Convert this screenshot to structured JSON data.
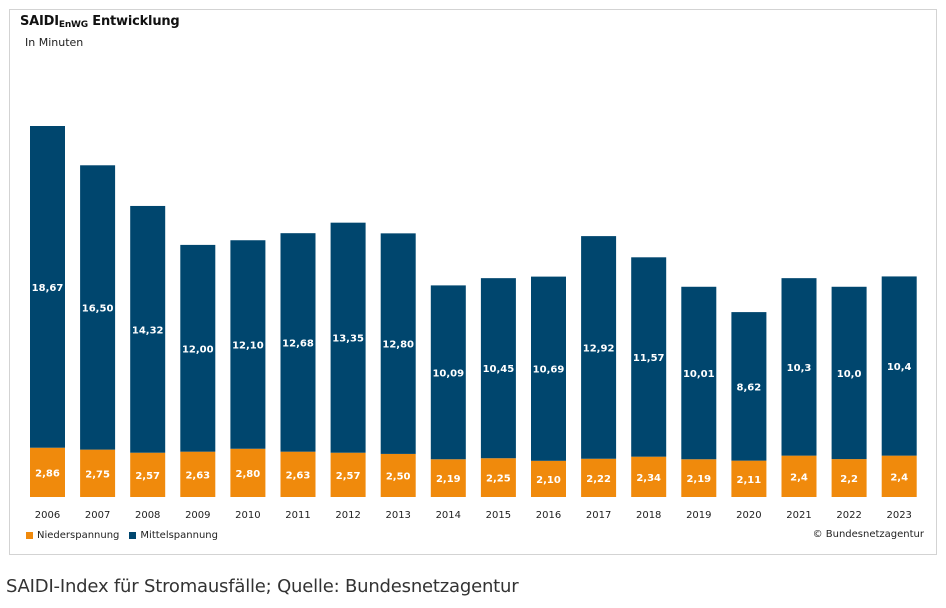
{
  "chart_title_main": "SAIDI",
  "chart_title_sub": "EnWG",
  "chart_title_rest": " Entwicklung",
  "chart_subtitle": "In Minuten",
  "copyright": "© Bundesnetzagentur",
  "caption": "SAIDI-Index für Stromausfälle; Quelle: Bundesnetzagentur",
  "colors": {
    "niederspannung": "#f08a0c",
    "mittelspannung": "#00466e",
    "label_text": "#ffffff"
  },
  "chart_data": {
    "type": "bar",
    "stacked": true,
    "title": "SAIDI EnWG Entwicklung",
    "subtitle": "In Minuten",
    "categories": [
      "2006",
      "2007",
      "2008",
      "2009",
      "2010",
      "2011",
      "2012",
      "2013",
      "2014",
      "2015",
      "2016",
      "2017",
      "2018",
      "2019",
      "2020",
      "2021",
      "2022",
      "2023"
    ],
    "series": [
      {
        "name": "Niederspannung",
        "values": [
          2.86,
          2.75,
          2.57,
          2.63,
          2.8,
          2.63,
          2.57,
          2.5,
          2.19,
          2.25,
          2.1,
          2.22,
          2.34,
          2.19,
          2.11,
          2.4,
          2.2,
          2.4
        ],
        "labels": [
          "2,86",
          "2,75",
          "2,57",
          "2,63",
          "2,80",
          "2,63",
          "2,57",
          "2,50",
          "2,19",
          "2,25",
          "2,10",
          "2,22",
          "2,34",
          "2,19",
          "2,11",
          "2,4",
          "2,2",
          "2,4"
        ]
      },
      {
        "name": "Mittelspannung",
        "values": [
          18.67,
          16.5,
          14.32,
          12.0,
          12.1,
          12.68,
          13.35,
          12.8,
          10.09,
          10.45,
          10.69,
          12.92,
          11.57,
          10.01,
          8.62,
          10.3,
          10.0,
          10.4
        ],
        "labels": [
          "18,67",
          "16,50",
          "14,32",
          "12,00",
          "12,10",
          "12,68",
          "13,35",
          "12,80",
          "10,09",
          "10,45",
          "10,69",
          "12,92",
          "11,57",
          "10,01",
          "8,62",
          "10,3",
          "10,0",
          "10,4"
        ]
      }
    ],
    "legend": {
      "position": "bottom-left"
    },
    "grid": false
  }
}
